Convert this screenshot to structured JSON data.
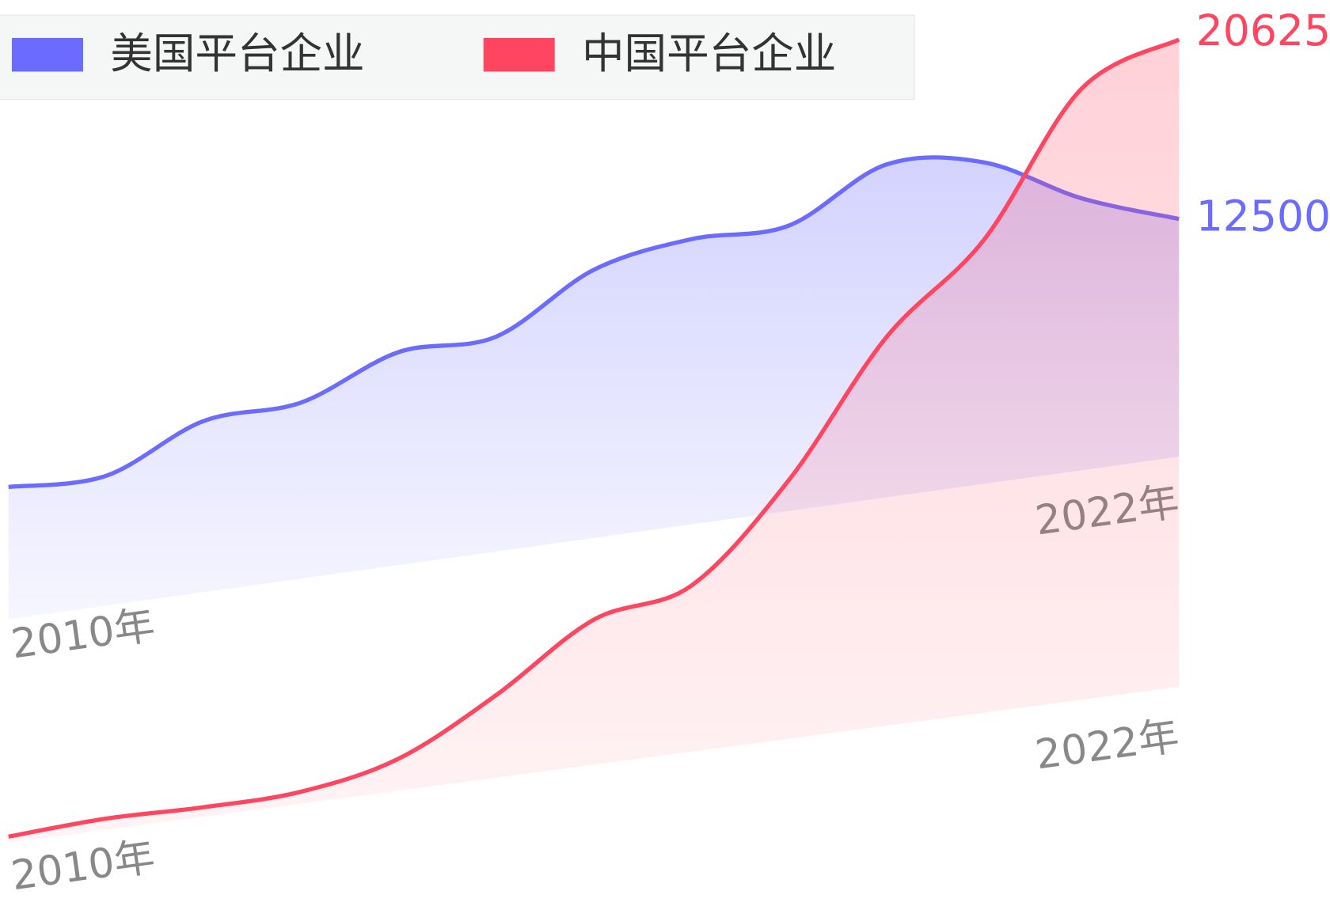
{
  "chart_data": {
    "type": "area",
    "categories": [
      "2010年",
      null,
      null,
      null,
      null,
      null,
      null,
      null,
      null,
      null,
      null,
      null,
      "2022年"
    ],
    "series": [
      {
        "name": "美国平台企业",
        "color": "#6b6bff",
        "values": [
          6960,
          6830,
          9000,
          9260,
          11200,
          11300,
          14100,
          15000,
          15000,
          17500,
          16900,
          14300,
          12500
        ]
      },
      {
        "name": "中国平台企业",
        "color": "#ff4560",
        "values": [
          190,
          350,
          300,
          380,
          1020,
          2630,
          4620,
          5290,
          8240,
          12380,
          15070,
          19470,
          20625
        ]
      }
    ],
    "legend": "top-left"
  }
}
